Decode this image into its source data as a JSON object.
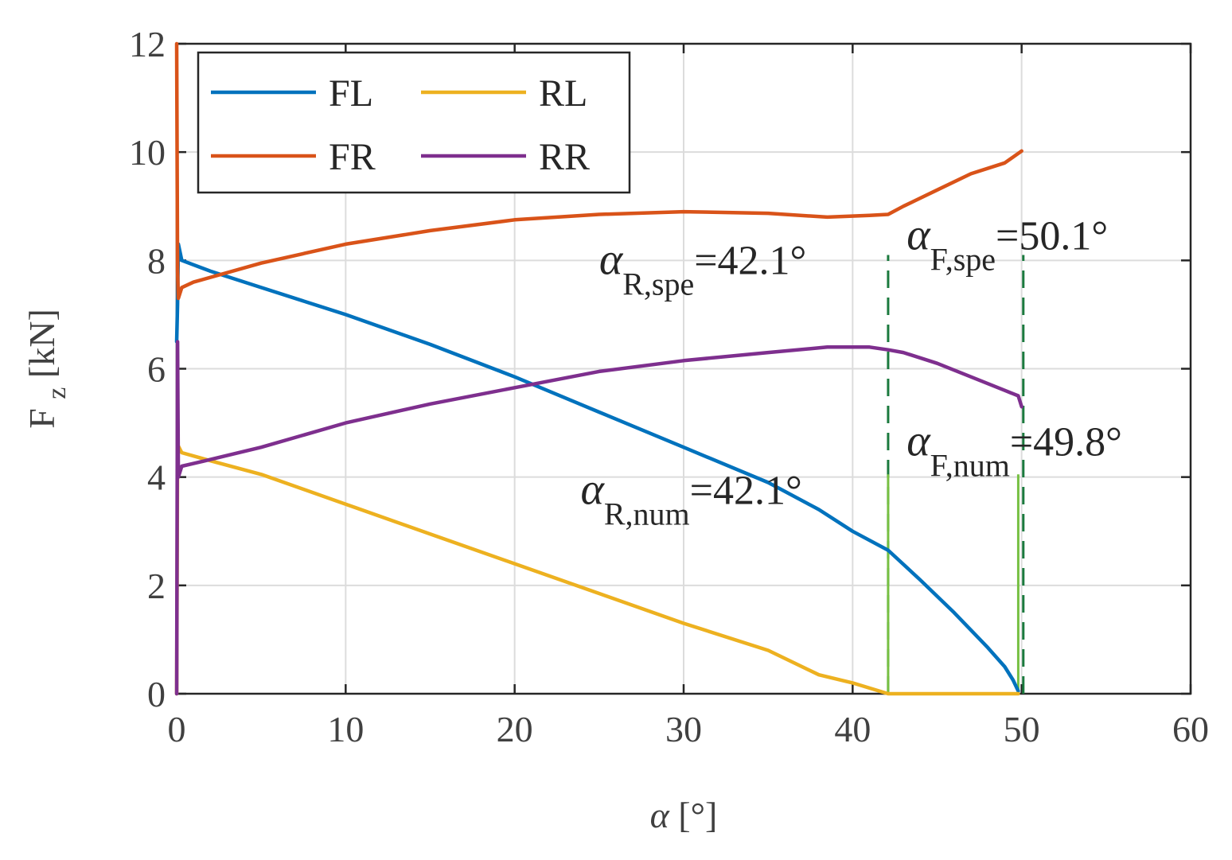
{
  "chart_data": {
    "type": "line",
    "xlabel_symbol": "α",
    "xlabel_unit": "[°]",
    "ylabel_main": "F",
    "ylabel_sub": "z",
    "ylabel_unit": "[kN]",
    "xlim": [
      0,
      60
    ],
    "ylim": [
      0,
      12
    ],
    "xticks": [
      0,
      10,
      20,
      30,
      40,
      50,
      60
    ],
    "yticks": [
      0,
      2,
      4,
      6,
      8,
      10,
      12
    ],
    "grid": true,
    "legend_position": "top-left",
    "series": [
      {
        "name": "FL",
        "color": "#0072BD",
        "points": [
          [
            0,
            6.5
          ],
          [
            0.05,
            7.2
          ],
          [
            0.1,
            8.3
          ],
          [
            0.3,
            8.0
          ],
          [
            2,
            7.8
          ],
          [
            5,
            7.5
          ],
          [
            10,
            7.0
          ],
          [
            15,
            6.45
          ],
          [
            20,
            5.85
          ],
          [
            25,
            5.2
          ],
          [
            30,
            4.55
          ],
          [
            35,
            3.9
          ],
          [
            38,
            3.4
          ],
          [
            40,
            3.0
          ],
          [
            42.1,
            2.65
          ],
          [
            44,
            2.1
          ],
          [
            46,
            1.5
          ],
          [
            48,
            0.85
          ],
          [
            49,
            0.5
          ],
          [
            49.5,
            0.25
          ],
          [
            49.8,
            0.05
          ]
        ]
      },
      {
        "name": "FR",
        "color": "#D95319",
        "points": [
          [
            0,
            12
          ],
          [
            0.05,
            7.8
          ],
          [
            0.1,
            7.3
          ],
          [
            0.3,
            7.5
          ],
          [
            1,
            7.6
          ],
          [
            5,
            7.95
          ],
          [
            10,
            8.3
          ],
          [
            15,
            8.55
          ],
          [
            20,
            8.75
          ],
          [
            25,
            8.85
          ],
          [
            30,
            8.9
          ],
          [
            35,
            8.87
          ],
          [
            38.5,
            8.8
          ],
          [
            41,
            8.83
          ],
          [
            42.1,
            8.85
          ],
          [
            43,
            9.0
          ],
          [
            45,
            9.3
          ],
          [
            47,
            9.6
          ],
          [
            49,
            9.8
          ],
          [
            50,
            10.02
          ]
        ]
      },
      {
        "name": "RL",
        "color": "#EDB120",
        "points": [
          [
            0,
            0
          ],
          [
            0.05,
            4.6
          ],
          [
            0.3,
            4.45
          ],
          [
            2,
            4.3
          ],
          [
            5,
            4.05
          ],
          [
            10,
            3.5
          ],
          [
            15,
            2.95
          ],
          [
            20,
            2.4
          ],
          [
            25,
            1.85
          ],
          [
            30,
            1.3
          ],
          [
            35,
            0.8
          ],
          [
            38,
            0.35
          ],
          [
            40,
            0.2
          ],
          [
            42.1,
            0
          ],
          [
            45,
            0
          ],
          [
            49.8,
            0
          ]
        ]
      },
      {
        "name": "RR",
        "color": "#7E2F8E",
        "points": [
          [
            0,
            0
          ],
          [
            0.05,
            6.5
          ],
          [
            0.1,
            4.0
          ],
          [
            0.3,
            4.2
          ],
          [
            1,
            4.25
          ],
          [
            5,
            4.55
          ],
          [
            10,
            5.0
          ],
          [
            15,
            5.35
          ],
          [
            20,
            5.65
          ],
          [
            25,
            5.95
          ],
          [
            30,
            6.15
          ],
          [
            35,
            6.3
          ],
          [
            38.5,
            6.4
          ],
          [
            41,
            6.4
          ],
          [
            42.1,
            6.35
          ],
          [
            43,
            6.3
          ],
          [
            45,
            6.1
          ],
          [
            47,
            5.85
          ],
          [
            49,
            5.6
          ],
          [
            49.8,
            5.5
          ],
          [
            50,
            5.3
          ]
        ]
      }
    ],
    "vlines": [
      {
        "x": 42.1,
        "y0": 0,
        "y1": 8.1,
        "style": "dashed",
        "color": "#1B7A3E"
      },
      {
        "x": 50.1,
        "y0": 0,
        "y1": 8.1,
        "style": "dashed",
        "color": "#1B7A3E"
      },
      {
        "x": 42.1,
        "y0": 0,
        "y1": 4.05,
        "style": "solid",
        "color": "#77C043"
      },
      {
        "x": 49.8,
        "y0": 0,
        "y1": 4.05,
        "style": "solid",
        "color": "#77C043"
      }
    ],
    "annotations": [
      {
        "symbol": "α",
        "sub": "R,spe",
        "value": "=42.1°",
        "x": 25.0,
        "y": 7.75
      },
      {
        "symbol": "α",
        "sub": "F,spe",
        "value": "=50.1°",
        "x": 43.2,
        "y": 8.2
      },
      {
        "symbol": "α",
        "sub": "F,num",
        "value": "=49.8°",
        "x": 43.2,
        "y": 4.4
      },
      {
        "symbol": "α",
        "sub": "R,num",
        "value": "=42.1°",
        "x": 23.9,
        "y": 3.5
      }
    ]
  }
}
